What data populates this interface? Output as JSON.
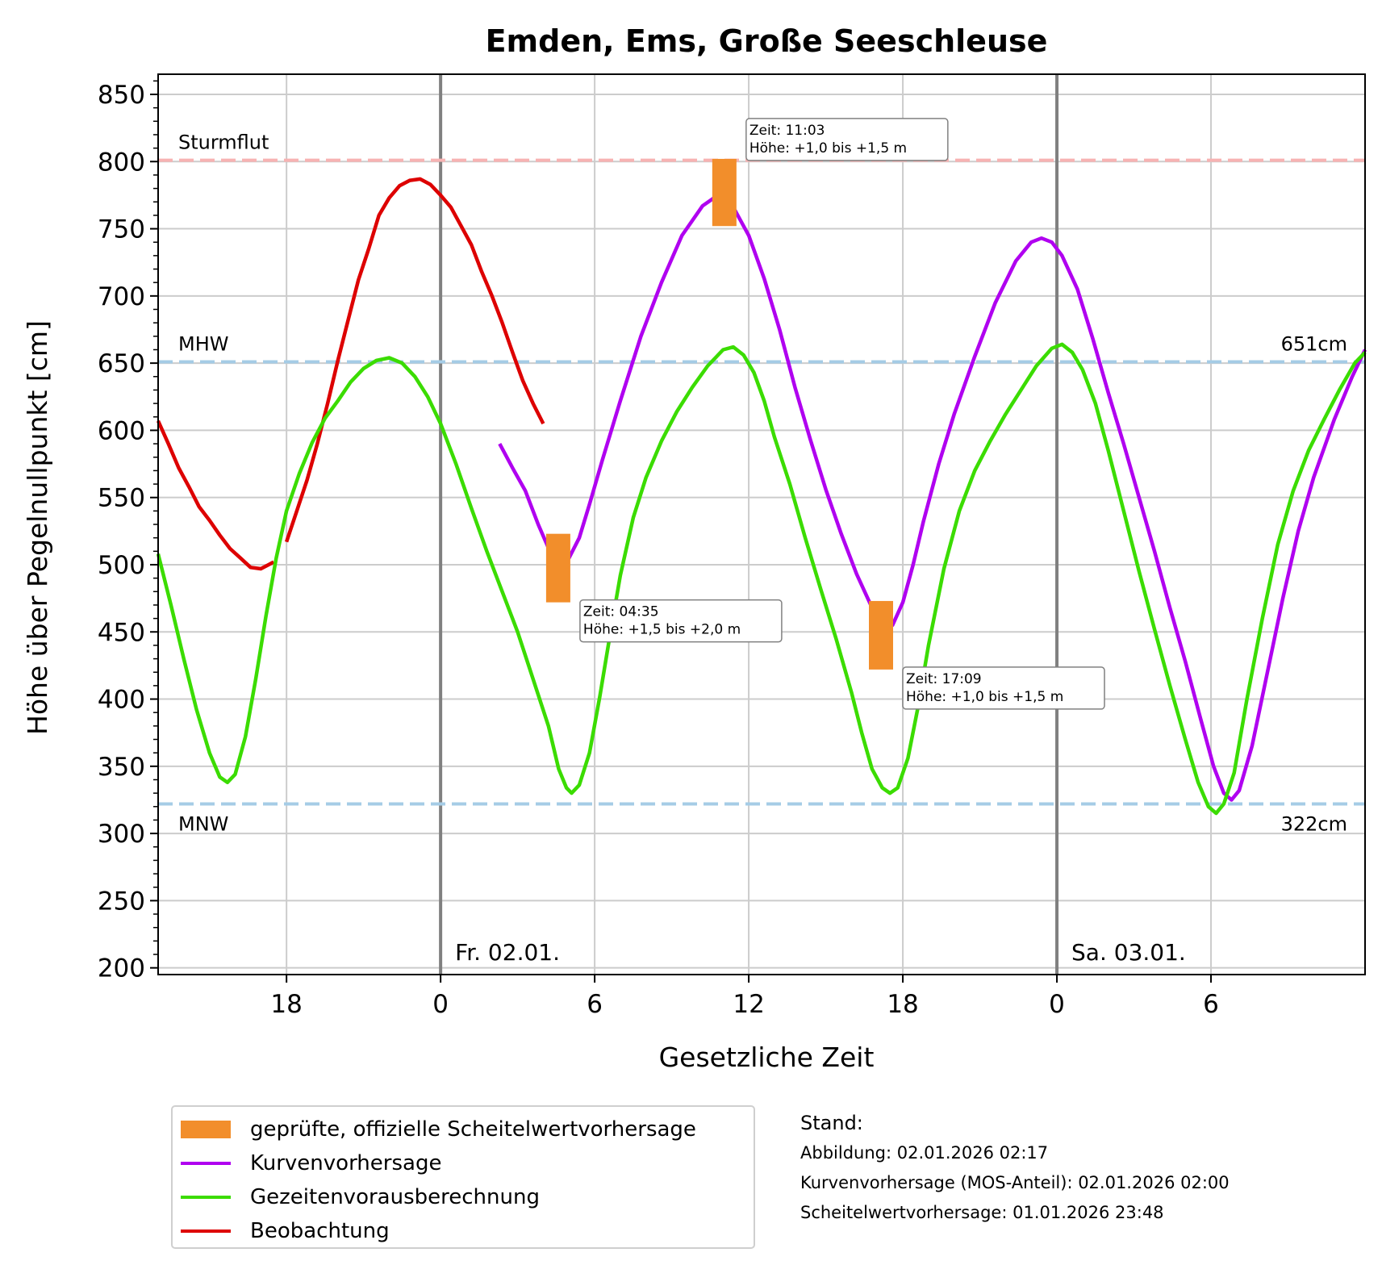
{
  "chart_data": {
    "type": "line",
    "title": "Emden, Ems, Große Seeschleuse",
    "xlabel": "Gesetzliche Zeit",
    "ylabel": "Höhe über Pegelnullpunkt [cm]",
    "xlim_hours": [
      -11,
      36
    ],
    "ylim": [
      195,
      865
    ],
    "x_ticks": [
      {
        "h": -6,
        "label": "18"
      },
      {
        "h": 0,
        "label": "0"
      },
      {
        "h": 6,
        "label": "6"
      },
      {
        "h": 12,
        "label": "12"
      },
      {
        "h": 18,
        "label": "18"
      },
      {
        "h": 24,
        "label": "0"
      },
      {
        "h": 30,
        "label": "6"
      }
    ],
    "y_ticks": [
      200,
      250,
      300,
      350,
      400,
      450,
      500,
      550,
      600,
      650,
      700,
      750,
      800,
      850
    ],
    "grid": true,
    "day_separators": [
      {
        "h": 0,
        "label": "Fr. 02.01."
      },
      {
        "h": 24,
        "label": "Sa. 03.01."
      }
    ],
    "reference_lines": [
      {
        "name": "Sturmflut",
        "value": 801,
        "color": "#f7b3b3",
        "right_label": ""
      },
      {
        "name": "MHW",
        "value": 651,
        "color": "#a5cce6",
        "right_label": "651cm"
      },
      {
        "name": "MNW",
        "value": 322,
        "color": "#a5cce6",
        "right_label": "322cm"
      }
    ],
    "series": [
      {
        "name": "Beobachtung",
        "color": "#dd0000",
        "segments": [
          [
            [
              -11,
              607
            ],
            [
              -10.6,
              590
            ],
            [
              -10.2,
              572
            ],
            [
              -9.8,
              558
            ],
            [
              -9.4,
              543
            ],
            [
              -9,
              533
            ],
            [
              -8.6,
              522
            ],
            [
              -8.2,
              512
            ],
            [
              -7.8,
              505
            ],
            [
              -7.4,
              498
            ],
            [
              -7,
              497
            ],
            [
              -6.7,
              500
            ],
            [
              -6.5,
              502
            ]
          ],
          [
            [
              -6,
              517
            ],
            [
              -5.6,
              540
            ],
            [
              -5.2,
              563
            ],
            [
              -4.8,
              590
            ],
            [
              -4.4,
              620
            ],
            [
              -4,
              652
            ],
            [
              -3.6,
              682
            ],
            [
              -3.2,
              712
            ],
            [
              -2.8,
              735
            ],
            [
              -2.4,
              760
            ],
            [
              -2,
              773
            ],
            [
              -1.6,
              782
            ],
            [
              -1.2,
              786
            ],
            [
              -0.8,
              787
            ],
            [
              -0.4,
              783
            ],
            [
              0,
              775
            ],
            [
              0.4,
              766
            ],
            [
              0.8,
              752
            ],
            [
              1.2,
              738
            ],
            [
              1.6,
              718
            ],
            [
              2,
              700
            ],
            [
              2.4,
              680
            ],
            [
              2.8,
              658
            ],
            [
              3.2,
              637
            ],
            [
              3.6,
              620
            ],
            [
              4.0,
              605
            ]
          ]
        ]
      },
      {
        "name": "Kurvenvorhersage",
        "color": "#b000f0",
        "segments": [
          [
            [
              2.3,
              590
            ],
            [
              2.8,
              572
            ],
            [
              3.3,
              555
            ],
            [
              3.8,
              530
            ],
            [
              4.3,
              508
            ],
            [
              4.6,
              500
            ],
            [
              5,
              505
            ],
            [
              5.4,
              520
            ],
            [
              5.8,
              545
            ],
            [
              6.3,
              578
            ],
            [
              7,
              622
            ],
            [
              7.8,
              670
            ],
            [
              8.6,
              710
            ],
            [
              9.4,
              745
            ],
            [
              10.2,
              767
            ],
            [
              10.8,
              775
            ],
            [
              11.4,
              766
            ],
            [
              12,
              745
            ],
            [
              12.6,
              713
            ],
            [
              13.2,
              675
            ],
            [
              13.8,
              632
            ],
            [
              14.4,
              593
            ],
            [
              15,
              556
            ],
            [
              15.6,
              523
            ],
            [
              16.2,
              493
            ],
            [
              16.8,
              468
            ],
            [
              17.2,
              455
            ],
            [
              17.6,
              455
            ],
            [
              18,
              472
            ],
            [
              18.4,
              500
            ],
            [
              18.8,
              532
            ],
            [
              19.4,
              575
            ],
            [
              20,
              612
            ],
            [
              20.8,
              655
            ],
            [
              21.6,
              695
            ],
            [
              22.4,
              726
            ],
            [
              23,
              740
            ],
            [
              23.4,
              743
            ],
            [
              23.8,
              740
            ],
            [
              24.2,
              730
            ],
            [
              24.8,
              705
            ],
            [
              25.4,
              668
            ],
            [
              26,
              628
            ],
            [
              26.6,
              590
            ],
            [
              27.2,
              550
            ],
            [
              27.8,
              510
            ],
            [
              28.4,
              468
            ],
            [
              29,
              428
            ],
            [
              29.6,
              385
            ],
            [
              30.1,
              350
            ],
            [
              30.5,
              330
            ],
            [
              30.8,
              325
            ],
            [
              31.1,
              332
            ],
            [
              31.6,
              365
            ],
            [
              32.2,
              420
            ],
            [
              32.8,
              475
            ],
            [
              33.4,
              525
            ],
            [
              34,
              565
            ],
            [
              34.8,
              608
            ],
            [
              35.5,
              640
            ],
            [
              36,
              660
            ]
          ]
        ]
      },
      {
        "name": "Gezeitenvorausberechnung",
        "color": "#3bdc00",
        "segments": [
          [
            [
              -11,
              508
            ],
            [
              -10.5,
              470
            ],
            [
              -10,
              430
            ],
            [
              -9.5,
              392
            ],
            [
              -9,
              360
            ],
            [
              -8.6,
              342
            ],
            [
              -8.3,
              338
            ],
            [
              -8,
              344
            ],
            [
              -7.6,
              372
            ],
            [
              -7.2,
              415
            ],
            [
              -6.8,
              462
            ],
            [
              -6.4,
              505
            ],
            [
              -6,
              540
            ],
            [
              -5.5,
              568
            ],
            [
              -5,
              591
            ],
            [
              -4.5,
              609
            ],
            [
              -4,
              622
            ],
            [
              -3.5,
              636
            ],
            [
              -3,
              646
            ],
            [
              -2.5,
              652
            ],
            [
              -2,
              654
            ],
            [
              -1.5,
              650
            ],
            [
              -1,
              640
            ],
            [
              -0.5,
              625
            ],
            [
              0,
              605
            ],
            [
              0.6,
              575
            ],
            [
              1.2,
              542
            ],
            [
              1.8,
              510
            ],
            [
              2.4,
              480
            ],
            [
              3,
              450
            ],
            [
              3.6,
              415
            ],
            [
              4.2,
              380
            ],
            [
              4.6,
              348
            ],
            [
              4.9,
              334
            ],
            [
              5.1,
              330
            ],
            [
              5.4,
              336
            ],
            [
              5.8,
              360
            ],
            [
              6.2,
              402
            ],
            [
              6.6,
              448
            ],
            [
              7,
              492
            ],
            [
              7.5,
              535
            ],
            [
              8,
              565
            ],
            [
              8.6,
              592
            ],
            [
              9.2,
              614
            ],
            [
              9.8,
              632
            ],
            [
              10.4,
              648
            ],
            [
              11,
              660
            ],
            [
              11.4,
              662
            ],
            [
              11.8,
              656
            ],
            [
              12.2,
              643
            ],
            [
              12.6,
              622
            ],
            [
              13,
              595
            ],
            [
              13.6,
              560
            ],
            [
              14.2,
              520
            ],
            [
              14.8,
              482
            ],
            [
              15.4,
              445
            ],
            [
              16,
              405
            ],
            [
              16.4,
              375
            ],
            [
              16.8,
              348
            ],
            [
              17.2,
              334
            ],
            [
              17.5,
              330
            ],
            [
              17.8,
              334
            ],
            [
              18.2,
              356
            ],
            [
              18.6,
              395
            ],
            [
              19,
              440
            ],
            [
              19.6,
              497
            ],
            [
              20.2,
              540
            ],
            [
              20.8,
              570
            ],
            [
              21.4,
              592
            ],
            [
              22,
              612
            ],
            [
              22.6,
              630
            ],
            [
              23.2,
              648
            ],
            [
              23.8,
              661
            ],
            [
              24.2,
              664
            ],
            [
              24.6,
              658
            ],
            [
              25,
              645
            ],
            [
              25.5,
              620
            ],
            [
              26,
              585
            ],
            [
              26.6,
              540
            ],
            [
              27.2,
              495
            ],
            [
              27.8,
              452
            ],
            [
              28.4,
              410
            ],
            [
              29,
              370
            ],
            [
              29.5,
              338
            ],
            [
              29.9,
              320
            ],
            [
              30.2,
              315
            ],
            [
              30.5,
              322
            ],
            [
              30.9,
              345
            ],
            [
              31.4,
              400
            ],
            [
              32,
              460
            ],
            [
              32.6,
              515
            ],
            [
              33.2,
              555
            ],
            [
              33.8,
              585
            ],
            [
              34.4,
              608
            ],
            [
              35,
              630
            ],
            [
              35.6,
              650
            ],
            [
              36,
              658
            ]
          ]
        ]
      }
    ],
    "crest_forecasts": [
      {
        "h": 4.58,
        "low": 472,
        "high": 523,
        "label": [
          "Zeit: 04:35",
          "Höhe: +1,5 bis +2,0 m"
        ]
      },
      {
        "h": 11.05,
        "low": 752,
        "high": 802,
        "label": [
          "Zeit: 11:03",
          "Höhe: +1,0 bis +1,5 m"
        ]
      },
      {
        "h": 17.15,
        "low": 422,
        "high": 473,
        "label": [
          "Zeit: 17:09",
          "Höhe: +1,0 bis +1,5 m"
        ]
      }
    ]
  },
  "legend": {
    "items": [
      {
        "label": "geprüfte, offizielle Scheitelwertvorhersage",
        "color": "#f28e2b",
        "kind": "patch"
      },
      {
        "label": "Kurvenvorhersage",
        "color": "#b000f0",
        "kind": "line"
      },
      {
        "label": "Gezeitenvorausberechnung",
        "color": "#3bdc00",
        "kind": "line"
      },
      {
        "label": "Beobachtung",
        "color": "#dd0000",
        "kind": "line"
      }
    ]
  },
  "stand": {
    "heading": "Stand:",
    "lines": [
      "Abbildung: 02.01.2026 02:17",
      "Kurvenvorhersage (MOS-Anteil): 02.01.2026 02:00",
      "Scheitelwertvorhersage: 01.01.2026 23:48"
    ]
  }
}
